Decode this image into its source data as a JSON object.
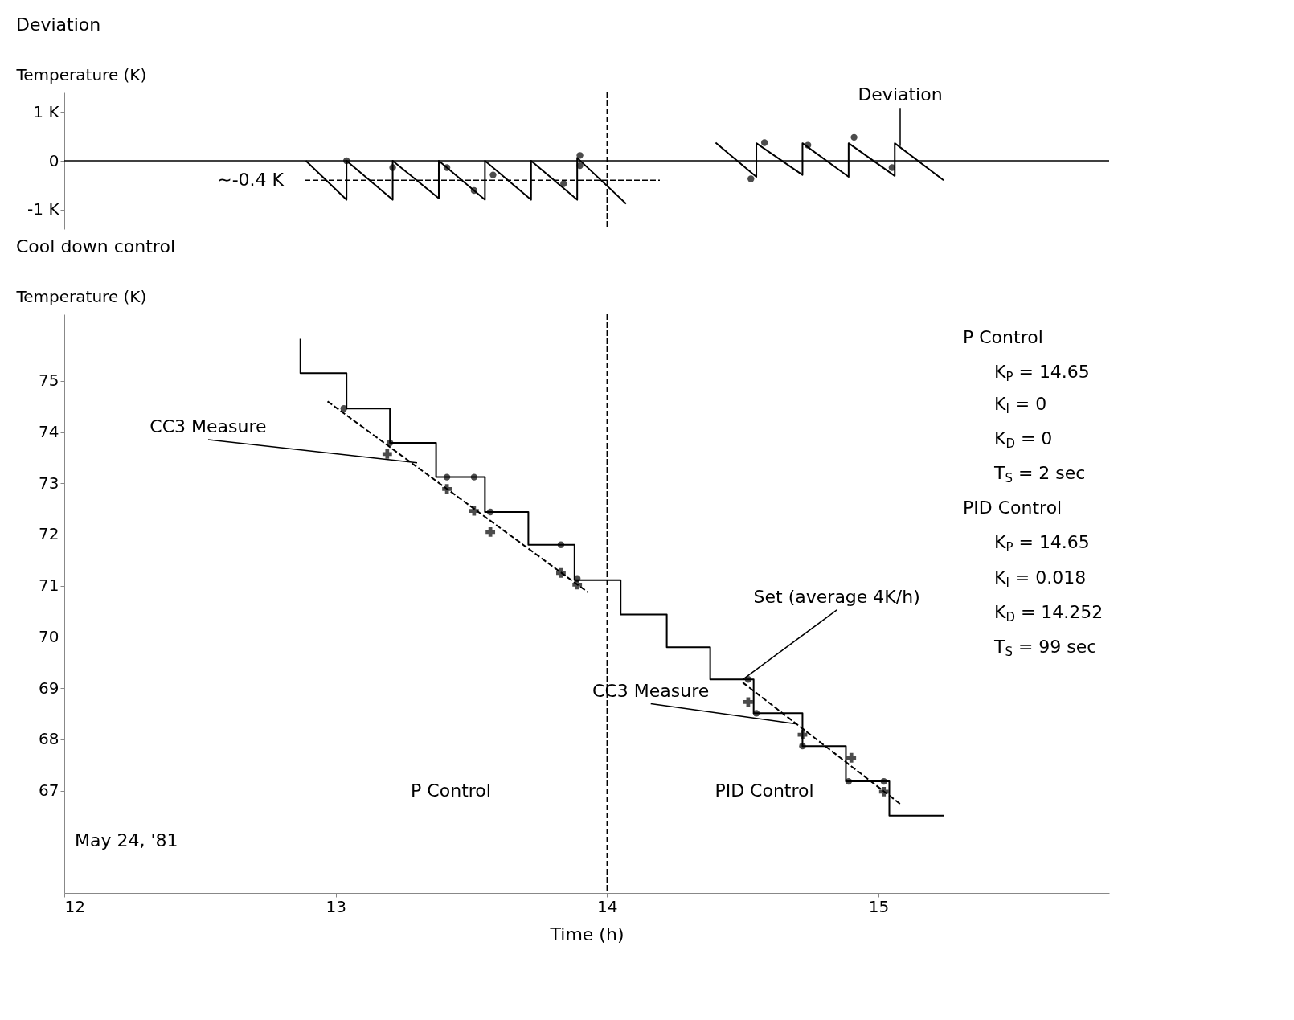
{
  "chart_data": [
    {
      "type": "line",
      "title": "Deviation",
      "ylabel": "Temperature (K)",
      "xlim": [
        12,
        15.85
      ],
      "ylim": [
        -1.4,
        1.4
      ],
      "yticks": [
        {
          "value": 1,
          "label": "1 K"
        },
        0,
        {
          "value": -1,
          "label": "-1 K"
        }
      ],
      "tick_labels": "y",
      "grid": false,
      "series": [
        {
          "color": "#000000",
          "line_style": "solid",
          "x": [
            12.89,
            13.04,
            13.04,
            13.21,
            13.21,
            13.38,
            13.38,
            13.55,
            13.55,
            13.72,
            13.72,
            13.89,
            13.89,
            14.07
          ],
          "values": [
            0,
            -0.8,
            0,
            -0.8,
            0,
            -0.77,
            0,
            -0.8,
            0,
            -0.8,
            0,
            -0.8,
            0.06,
            -0.88
          ]
        },
        {
          "color": "#000000",
          "line_style": "solid",
          "x": [
            14.4,
            14.55,
            14.55,
            14.72,
            14.72,
            14.89,
            14.89,
            15.06,
            15.06,
            15.24
          ],
          "values": [
            0.37,
            -0.33,
            0.36,
            -0.29,
            0.36,
            -0.33,
            0.36,
            -0.31,
            0.36,
            -0.4
          ]
        },
        {
          "type": "scatter",
          "color": "#000000",
          "marker": "circle",
          "x": [
            13.04,
            13.21,
            13.41,
            13.51,
            13.58,
            13.84,
            13.9,
            13.9,
            14.53,
            14.58,
            14.74,
            14.91,
            15.05
          ],
          "values": [
            0,
            -0.14,
            -0.14,
            -0.61,
            -0.29,
            -0.47,
            0.11,
            -0.1,
            -0.37,
            0.37,
            0.32,
            0.48,
            -0.14
          ]
        }
      ],
      "ref_lines": [
        {
          "axis": "y",
          "value": 0,
          "line_style": "solid",
          "color": "#000000"
        },
        {
          "axis": "y",
          "value": -0.4,
          "label": "∼-0.4 K",
          "line_style": "dashed",
          "color": "#000000"
        },
        {
          "axis": "x",
          "value": 14,
          "line_style": "dashed",
          "color": "#000000"
        }
      ],
      "annotations": [
        {
          "text": "Deviation",
          "x": 15.08,
          "y": 0.3
        }
      ]
    },
    {
      "type": "line",
      "title": "Cool down control",
      "ylabel": "Temperature (K)",
      "xlabel": "Time (h)",
      "xlim": [
        12,
        15.85
      ],
      "ylim": [
        65,
        76.3
      ],
      "xticks": [
        12,
        13,
        14,
        15
      ],
      "yticks": [
        67,
        68,
        69,
        70,
        71,
        72,
        73,
        74,
        75
      ],
      "grid": false,
      "series": [
        {
          "type": "step",
          "color": "#000000",
          "line_style": "solid",
          "x": [
            12.87,
            12.87,
            13.04,
            13.2,
            13.37,
            13.55,
            13.71,
            13.88,
            14.05,
            14.22,
            14.38,
            14.54,
            14.72,
            14.88,
            15.04,
            15.24
          ],
          "values": [
            75.82,
            75.15,
            74.46,
            73.79,
            73.12,
            72.44,
            71.8,
            71.11,
            70.44,
            69.8,
            69.17,
            68.51,
            67.87,
            67.18,
            66.51,
            66.51
          ]
        },
        {
          "type": "scatter",
          "color": "#000000",
          "marker": "circle",
          "x": [
            13.03,
            13.2,
            13.41,
            13.51,
            13.57,
            13.83,
            13.89,
            14.52,
            14.55,
            14.72,
            14.89,
            15.02
          ],
          "values": [
            74.46,
            73.79,
            73.12,
            73.12,
            72.44,
            71.8,
            71.14,
            69.17,
            68.51,
            67.87,
            67.18,
            67.18
          ]
        },
        {
          "type": "scatter",
          "color": "#000000",
          "marker": "cross",
          "x": [
            13.19,
            13.41,
            13.51,
            13.57,
            13.83,
            13.89,
            14.52,
            14.72,
            14.9,
            15.02
          ],
          "values": [
            73.57,
            72.89,
            72.46,
            72.05,
            71.25,
            71.02,
            68.73,
            68.09,
            67.64,
            66.98
          ]
        },
        {
          "color": "#000000",
          "line_style": "dashed",
          "x": [
            12.97,
            13.93
          ],
          "values": [
            74.6,
            70.87
          ]
        },
        {
          "color": "#000000",
          "line_style": "dashed",
          "x": [
            14.5,
            15.08
          ],
          "values": [
            69.11,
            66.74
          ]
        }
      ],
      "ref_lines": [
        {
          "axis": "x",
          "value": 14,
          "line_style": "dashed",
          "color": "#000000"
        }
      ],
      "annotations": [
        "May 24, '81",
        "P Control",
        "K$_{P}$ = 14.65",
        "K$_{I}$ = 0",
        "K$_{D}$ = 0",
        "T$_{S}$ = 2 sec",
        "PID Control",
        "K$_{P}$ = 14.65",
        "K$_{I}$ = 0.018",
        "K$_{D}$ = 14.252",
        "T$_{S}$ = 99 sec",
        "P Control",
        "PID Control",
        {
          "text": "CC3 Measure",
          "x": 13.3,
          "y": 73.4
        },
        {
          "text": "CC3 Measure",
          "x": 14.7,
          "y": 68.3
        },
        {
          "text": "Set (average 4K/h)",
          "x": 14.5,
          "y": 69.17
        }
      ]
    }
  ]
}
